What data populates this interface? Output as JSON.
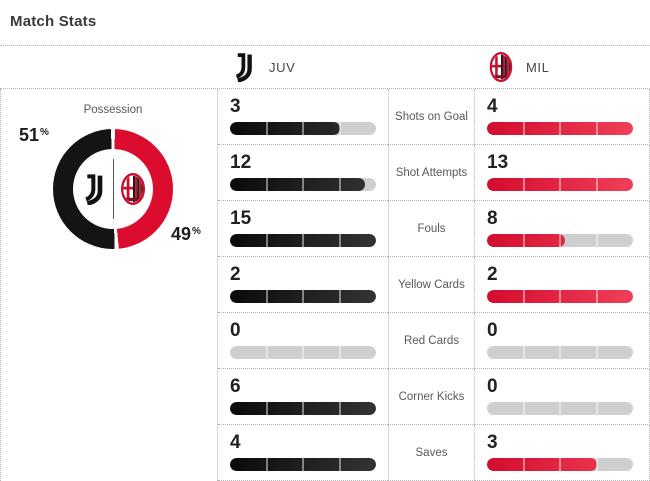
{
  "title": "Match Stats",
  "teams": {
    "home": {
      "code": "JUV",
      "logo": "juventus-logo",
      "bar_from": "#0a0a0a",
      "bar_to": "#333333",
      "donut": "#141414"
    },
    "away": {
      "code": "MIL",
      "logo": "ac-milan-crest",
      "bar_from": "#d40b2e",
      "bar_to": "#ef4058",
      "donut": "#dc0c2f"
    }
  },
  "possession": {
    "label": "Possession",
    "home": {
      "value": 51,
      "suffix": "%"
    },
    "away": {
      "value": 49,
      "suffix": "%"
    }
  },
  "stats": {
    "rows": [
      {
        "label": "Shots on Goal",
        "home": 3,
        "away": 4
      },
      {
        "label": "Shot Attempts",
        "home": 12,
        "away": 13
      },
      {
        "label": "Fouls",
        "home": 15,
        "away": 8
      },
      {
        "label": "Yellow Cards",
        "home": 2,
        "away": 2
      },
      {
        "label": "Red Cards",
        "home": 0,
        "away": 0
      },
      {
        "label": "Corner Kicks",
        "home": 6,
        "away": 0
      },
      {
        "label": "Saves",
        "home": 4,
        "away": 3
      }
    ]
  },
  "colors": {
    "track": "#cfcfcf",
    "dotted": "#b5b5b5",
    "label_text": "#585858",
    "number_text": "#212121"
  },
  "chart_data": [
    {
      "type": "pie",
      "title": "Possession",
      "labels": [
        "JUV",
        "MIL"
      ],
      "values": [
        51,
        49
      ],
      "unit": "%",
      "colors": [
        "#141414",
        "#dc0c2f"
      ],
      "style": "donut, black left half JUV, red right half MIL, club logos in center"
    },
    {
      "type": "bar",
      "title": "Match Stats",
      "categories": [
        "Shots on Goal",
        "Shot Attempts",
        "Fouls",
        "Yellow Cards",
        "Red Cards",
        "Corner Kicks",
        "Saves"
      ],
      "series": [
        {
          "name": "JUV",
          "values": [
            3,
            12,
            15,
            2,
            0,
            6,
            4
          ]
        },
        {
          "name": "MIL",
          "values": [
            4,
            13,
            8,
            2,
            0,
            0,
            3
          ]
        }
      ],
      "layout": "horizontal paired pill bars, 4 segments each, each bar scaled to the row maximum, gray = unfilled"
    }
  ]
}
